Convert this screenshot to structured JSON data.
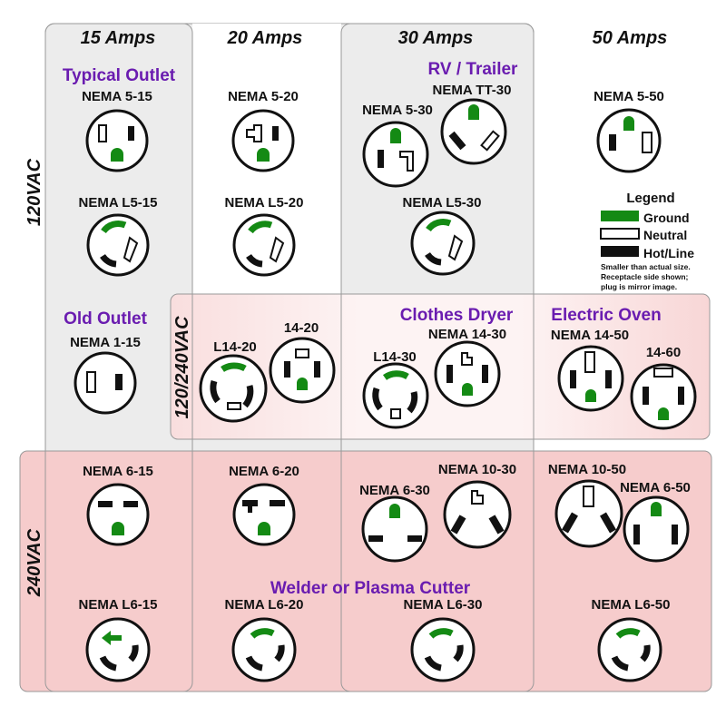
{
  "columns": [
    "15 Amps",
    "20 Amps",
    "30 Amps",
    "50 Amps"
  ],
  "voltages": {
    "v120": "120VAC",
    "v120_240": "120/240VAC",
    "v240": "240VAC"
  },
  "categories": {
    "typical": "Typical Outlet",
    "rv": "RV / Trailer",
    "old": "Old Outlet",
    "dryer": "Clothes Dryer",
    "oven": "Electric Oven",
    "welder": "Welder or Plasma Cutter"
  },
  "receptacles": {
    "n5_15": "NEMA 5-15",
    "n5_20": "NEMA 5-20",
    "n5_30": "NEMA 5-30",
    "ntt30": "NEMA TT-30",
    "n5_50": "NEMA 5-50",
    "l5_15": "NEMA L5-15",
    "l5_20": "NEMA L5-20",
    "l5_30": "NEMA L5-30",
    "n1_15": "NEMA 1-15",
    "l14_20": "L14-20",
    "n14_20": "14-20",
    "l14_30": "L14-30",
    "n14_30": "NEMA 14-30",
    "n14_50": "NEMA 14-50",
    "n14_60": "14-60",
    "n6_15": "NEMA 6-15",
    "n6_20": "NEMA 6-20",
    "n6_30": "NEMA 6-30",
    "n10_30": "NEMA 10-30",
    "n10_50": "NEMA 10-50",
    "n6_50": "NEMA 6-50",
    "l6_15": "NEMA L6-15",
    "l6_20": "NEMA L6-20",
    "l6_30": "NEMA L6-30",
    "l6_50": "NEMA L6-50"
  },
  "legend": {
    "title": "Legend",
    "ground": "Ground",
    "neutral": "Neutral",
    "hot": "Hot/Line",
    "note1": "Smaller than actual size.",
    "note2": "Receptacle side shown;",
    "note3": "plug is mirror image."
  },
  "colors": {
    "ground": "#148a14",
    "category_text": "#6a1cb0",
    "band_grey": "#ececec",
    "band_pink": "#f6cccc"
  }
}
